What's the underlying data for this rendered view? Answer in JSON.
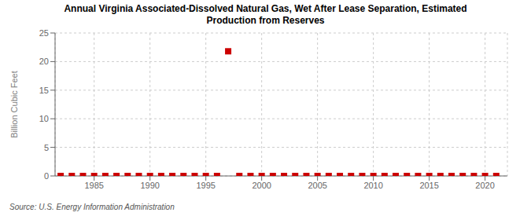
{
  "chart_data": {
    "type": "scatter",
    "title": "Annual Virginia Associated-Dissolved Natural Gas, Wet After Lease Separation, Estimated",
    "subtitle": "Production from Reserves",
    "y_label": "Billion Cubic Feet",
    "annotation": "Source: U.S. Energy Information Administration",
    "x": [
      1982,
      1983,
      1984,
      1985,
      1986,
      1987,
      1988,
      1989,
      1990,
      1991,
      1992,
      1993,
      1994,
      1995,
      1996,
      1997,
      1998,
      1999,
      2000,
      2001,
      2002,
      2003,
      2004,
      2005,
      2006,
      2007,
      2008,
      2009,
      2010,
      2011,
      2012,
      2013,
      2014,
      2015,
      2016,
      2017,
      2018,
      2019,
      2020,
      2021
    ],
    "values": [
      0.0,
      0.0,
      0.0,
      0.0,
      0.0,
      0.0,
      0.0,
      0.0,
      0.0,
      0.0,
      0.0,
      0.0,
      0.0,
      0.0,
      0.0,
      21.8,
      0.0,
      0.0,
      0.0,
      0.0,
      0.0,
      0.0,
      0.0,
      0.0,
      0.0,
      0.0,
      0.0,
      0.0,
      0.0,
      0.0,
      0.0,
      0.0,
      0.0,
      0.0,
      0.0,
      0.0,
      0.0,
      0.0,
      0.0,
      0.0
    ],
    "color": "#cc0000",
    "marker": "square",
    "xlim": [
      1981.5,
      2022
    ],
    "xticks": [
      1985,
      1990,
      1995,
      2000,
      2005,
      2010,
      2015,
      2020
    ],
    "ylim": [
      0,
      25
    ],
    "yticks": [
      0,
      5,
      10,
      15,
      20,
      25
    ],
    "grid": true
  }
}
